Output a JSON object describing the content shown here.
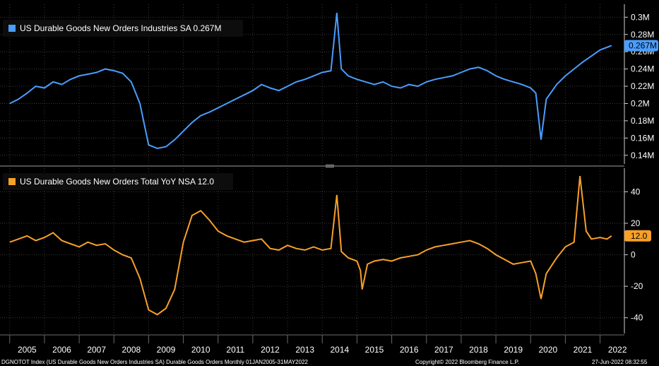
{
  "colors": {
    "background": "#000000",
    "grid": "#3a3a3a",
    "axis": "#cfcfcf",
    "blue": "#4a9eff",
    "orange": "#f7a02a",
    "divider": "#6b6b6b"
  },
  "footer": {
    "left": "DGNOTOT Index (US Durable Goods New Orders Industries SA) Durable Goods Orders  Monthly 01JAN2005-31MAY2022",
    "center": "Copyright© 2022 Bloomberg Finance L.P.",
    "right": "27-Jun-2022 08:32:55"
  },
  "chart_data": [
    {
      "type": "line",
      "title": "",
      "legend": "US Durable Goods New Orders Industries SA 0.267M",
      "last_value_label": "0.267M",
      "xlabel": "",
      "ylabel": "",
      "x_categories": [
        "2005",
        "2006",
        "2007",
        "2008",
        "2009",
        "2010",
        "2011",
        "2012",
        "2013",
        "2014",
        "2015",
        "2016",
        "2017",
        "2018",
        "2019",
        "2020",
        "2021",
        "2022"
      ],
      "ylim": [
        0.13,
        0.315
      ],
      "yticks": [
        0.14,
        0.16,
        0.18,
        0.2,
        0.22,
        0.24,
        0.26,
        0.28,
        0.3
      ],
      "ytick_labels": [
        "0.14M",
        "0.16M",
        "0.18M",
        "0.2M",
        "0.22M",
        "0.24M",
        "0.26M",
        "0.28M",
        "0.3M"
      ],
      "series": [
        {
          "name": "US Durable Goods New Orders Industries SA",
          "points": [
            [
              2005.0,
              0.2
            ],
            [
              2005.25,
              0.205
            ],
            [
              2005.5,
              0.212
            ],
            [
              2005.75,
              0.22
            ],
            [
              2006.0,
              0.218
            ],
            [
              2006.25,
              0.225
            ],
            [
              2006.5,
              0.222
            ],
            [
              2006.75,
              0.228
            ],
            [
              2007.0,
              0.232
            ],
            [
              2007.25,
              0.234
            ],
            [
              2007.5,
              0.236
            ],
            [
              2007.75,
              0.24
            ],
            [
              2008.0,
              0.238
            ],
            [
              2008.25,
              0.235
            ],
            [
              2008.5,
              0.225
            ],
            [
              2008.75,
              0.2
            ],
            [
              2009.0,
              0.152
            ],
            [
              2009.25,
              0.148
            ],
            [
              2009.5,
              0.15
            ],
            [
              2009.75,
              0.158
            ],
            [
              2010.0,
              0.168
            ],
            [
              2010.25,
              0.178
            ],
            [
              2010.5,
              0.186
            ],
            [
              2010.75,
              0.19
            ],
            [
              2011.0,
              0.195
            ],
            [
              2011.25,
              0.2
            ],
            [
              2011.5,
              0.205
            ],
            [
              2011.75,
              0.21
            ],
            [
              2012.0,
              0.215
            ],
            [
              2012.25,
              0.222
            ],
            [
              2012.5,
              0.218
            ],
            [
              2012.75,
              0.215
            ],
            [
              2013.0,
              0.22
            ],
            [
              2013.25,
              0.225
            ],
            [
              2013.5,
              0.228
            ],
            [
              2013.75,
              0.232
            ],
            [
              2014.0,
              0.236
            ],
            [
              2014.25,
              0.238
            ],
            [
              2014.42,
              0.305
            ],
            [
              2014.55,
              0.24
            ],
            [
              2014.75,
              0.232
            ],
            [
              2015.0,
              0.228
            ],
            [
              2015.25,
              0.225
            ],
            [
              2015.5,
              0.222
            ],
            [
              2015.75,
              0.225
            ],
            [
              2016.0,
              0.22
            ],
            [
              2016.25,
              0.218
            ],
            [
              2016.5,
              0.222
            ],
            [
              2016.75,
              0.22
            ],
            [
              2017.0,
              0.225
            ],
            [
              2017.25,
              0.228
            ],
            [
              2017.5,
              0.23
            ],
            [
              2017.75,
              0.232
            ],
            [
              2018.0,
              0.236
            ],
            [
              2018.25,
              0.24
            ],
            [
              2018.5,
              0.242
            ],
            [
              2018.75,
              0.238
            ],
            [
              2019.0,
              0.232
            ],
            [
              2019.25,
              0.228
            ],
            [
              2019.5,
              0.225
            ],
            [
              2019.75,
              0.222
            ],
            [
              2020.0,
              0.218
            ],
            [
              2020.15,
              0.212
            ],
            [
              2020.3,
              0.158
            ],
            [
              2020.45,
              0.205
            ],
            [
              2020.75,
              0.222
            ],
            [
              2021.0,
              0.232
            ],
            [
              2021.25,
              0.24
            ],
            [
              2021.5,
              0.248
            ],
            [
              2021.75,
              0.255
            ],
            [
              2022.0,
              0.262
            ],
            [
              2022.33,
              0.267
            ]
          ]
        }
      ]
    },
    {
      "type": "line",
      "title": "",
      "legend": "US Durable Goods New Orders Total YoY NSA 12.0",
      "last_value_label": "12.0",
      "xlabel": "",
      "ylabel": "",
      "x_categories": [
        "2005",
        "2006",
        "2007",
        "2008",
        "2009",
        "2010",
        "2011",
        "2012",
        "2013",
        "2014",
        "2015",
        "2016",
        "2017",
        "2018",
        "2019",
        "2020",
        "2021",
        "2022"
      ],
      "ylim": [
        -50,
        55
      ],
      "yticks": [
        -40,
        -20,
        0,
        20,
        40
      ],
      "ytick_labels": [
        "-40",
        "-20",
        "0",
        "20",
        "40"
      ],
      "series": [
        {
          "name": "US Durable Goods New Orders Total YoY NSA",
          "points": [
            [
              2005.0,
              8
            ],
            [
              2005.25,
              10
            ],
            [
              2005.5,
              12
            ],
            [
              2005.75,
              9
            ],
            [
              2006.0,
              11
            ],
            [
              2006.25,
              14
            ],
            [
              2006.5,
              9
            ],
            [
              2006.75,
              7
            ],
            [
              2007.0,
              5
            ],
            [
              2007.25,
              8
            ],
            [
              2007.5,
              6
            ],
            [
              2007.75,
              7
            ],
            [
              2008.0,
              3
            ],
            [
              2008.25,
              0
            ],
            [
              2008.5,
              -2
            ],
            [
              2008.75,
              -15
            ],
            [
              2009.0,
              -35
            ],
            [
              2009.25,
              -38
            ],
            [
              2009.5,
              -34
            ],
            [
              2009.75,
              -22
            ],
            [
              2010.0,
              8
            ],
            [
              2010.25,
              25
            ],
            [
              2010.5,
              28
            ],
            [
              2010.75,
              22
            ],
            [
              2011.0,
              15
            ],
            [
              2011.25,
              12
            ],
            [
              2011.5,
              10
            ],
            [
              2011.75,
              8
            ],
            [
              2012.0,
              9
            ],
            [
              2012.25,
              10
            ],
            [
              2012.5,
              4
            ],
            [
              2012.75,
              3
            ],
            [
              2013.0,
              6
            ],
            [
              2013.25,
              4
            ],
            [
              2013.5,
              3
            ],
            [
              2013.75,
              5
            ],
            [
              2014.0,
              3
            ],
            [
              2014.25,
              4
            ],
            [
              2014.42,
              38
            ],
            [
              2014.55,
              2
            ],
            [
              2014.75,
              -2
            ],
            [
              2015.0,
              -4
            ],
            [
              2015.1,
              -10
            ],
            [
              2015.15,
              -22
            ],
            [
              2015.3,
              -6
            ],
            [
              2015.5,
              -4
            ],
            [
              2015.75,
              -3
            ],
            [
              2016.0,
              -4
            ],
            [
              2016.25,
              -2
            ],
            [
              2016.5,
              -1
            ],
            [
              2016.75,
              0
            ],
            [
              2017.0,
              3
            ],
            [
              2017.25,
              5
            ],
            [
              2017.5,
              6
            ],
            [
              2017.75,
              7
            ],
            [
              2018.0,
              8
            ],
            [
              2018.25,
              9
            ],
            [
              2018.5,
              7
            ],
            [
              2018.75,
              4
            ],
            [
              2019.0,
              0
            ],
            [
              2019.25,
              -3
            ],
            [
              2019.5,
              -6
            ],
            [
              2019.75,
              -5
            ],
            [
              2020.0,
              -4
            ],
            [
              2020.15,
              -12
            ],
            [
              2020.3,
              -28
            ],
            [
              2020.45,
              -12
            ],
            [
              2020.75,
              -2
            ],
            [
              2021.0,
              5
            ],
            [
              2021.25,
              8
            ],
            [
              2021.42,
              50
            ],
            [
              2021.6,
              15
            ],
            [
              2021.75,
              10
            ],
            [
              2022.0,
              11
            ],
            [
              2022.2,
              10
            ],
            [
              2022.33,
              12
            ]
          ]
        }
      ]
    }
  ]
}
